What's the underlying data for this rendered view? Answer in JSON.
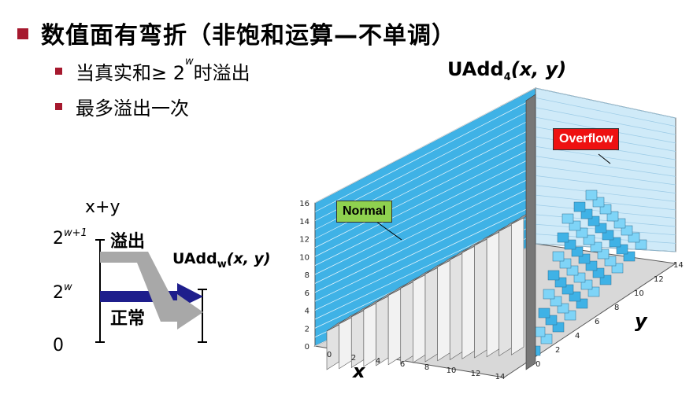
{
  "title": "数值面有弯折（非饱和运算—不单调）",
  "bullets": [
    "当真实和≥ 2",
    "时溢出",
    "最多溢出一次"
  ],
  "bullet_sup": "w",
  "left_diagram": {
    "xy_label": "x+y",
    "tick_top_base": "2",
    "tick_top_sup": "w+1",
    "tick_mid_base": "2",
    "tick_mid_sup": "w",
    "tick_zero": "0",
    "overflow_label": "溢出",
    "normal_label": "正常",
    "uadd_label_main": "UAdd",
    "uadd_label_sub": "w",
    "uadd_label_args": "(x, y)"
  },
  "plot": {
    "title_main": "UAdd",
    "title_sub": "4",
    "title_args": "(x, y)",
    "normal_callout": "Normal",
    "overflow_callout": "Overflow",
    "x_axis_label": "x",
    "y_axis_label": "y",
    "z_ticks": [
      "0",
      "2",
      "4",
      "6",
      "8",
      "10",
      "12",
      "14",
      "16"
    ],
    "x_ticks": [
      "0",
      "2",
      "4",
      "6",
      "8",
      "10",
      "12",
      "14"
    ],
    "y_ticks": [
      "0",
      "2",
      "4",
      "6",
      "8",
      "10",
      "12",
      "14"
    ],
    "colors": {
      "wall": "#3fb2e6",
      "normal_box": "#8fd14f",
      "overflow_box": "#ee1111",
      "bullet": "#a6192e",
      "arrow_blue": "#1e1e8c",
      "arrow_gray": "#a8a8a8"
    }
  }
}
